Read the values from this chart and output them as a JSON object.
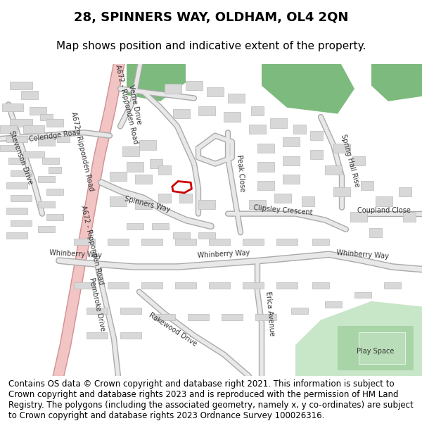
{
  "title": "28, SPINNERS WAY, OLDHAM, OL4 2QN",
  "subtitle": "Map shows position and indicative extent of the property.",
  "title_fontsize": 13,
  "subtitle_fontsize": 11,
  "background_color": "#ffffff",
  "map_bg_color": "#f5f5f5",
  "road_color": "#e8e8e8",
  "major_road_color": "#f2c4c4",
  "building_color": "#d8d8d8",
  "building_edge_color": "#bbbbbb",
  "green_color": "#7dba7d",
  "light_green_color": "#c8e6c8",
  "play_green_color": "#a8d4a8",
  "property_color": "#cc0000",
  "property_linewidth": 2.0,
  "copyright_text": "Contains OS data © Crown copyright and database right 2021. This information is subject to Crown copyright and database rights 2023 and is reproduced with the permission of HM Land Registry. The polygons (including the associated geometry, namely x, y co-ordinates) are subject to Crown copyright and database rights 2023 Ordnance Survey 100026316.",
  "copyright_fontsize": 8.5,
  "figsize": [
    6.0,
    6.25
  ],
  "dpi": 100
}
